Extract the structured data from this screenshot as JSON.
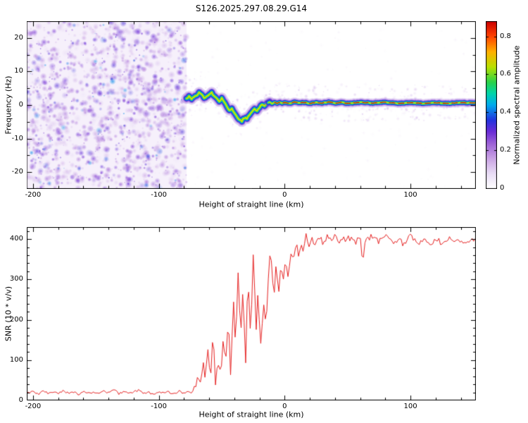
{
  "page": {
    "title": "S126.2025.297.08.29.G14"
  },
  "chart_data": [
    {
      "type": "heatmap",
      "title": "S126.2025.297.08.29.G14",
      "xlabel": "Height of straight line (km)",
      "ylabel": "Frequency (Hz)",
      "xlim": [
        -205,
        152
      ],
      "ylim": [
        -25,
        25
      ],
      "xticks": [
        -200,
        -100,
        0,
        100
      ],
      "yticks": [
        -20,
        -10,
        0,
        10,
        20
      ],
      "x_minor_step": 20,
      "y_minor_step": 5,
      "colorbar": {
        "label": "Normalized spectral amplitude",
        "ticks": [
          "0",
          "0.2",
          "0.4",
          "0.6",
          "0.8"
        ],
        "tick_values": [
          0,
          0.2,
          0.4,
          0.6,
          0.8
        ],
        "vmax": 0.88
      },
      "colormap_stops": [
        [
          0.0,
          "#ffffff"
        ],
        [
          0.08,
          "#e8dcf5"
        ],
        [
          0.16,
          "#c9a2e4"
        ],
        [
          0.24,
          "#9a5fd6"
        ],
        [
          0.3,
          "#6a2bd6"
        ],
        [
          0.36,
          "#2433dd"
        ],
        [
          0.44,
          "#00aaee"
        ],
        [
          0.5,
          "#00d4aa"
        ],
        [
          0.56,
          "#2ad24a"
        ],
        [
          0.64,
          "#b8e000"
        ],
        [
          0.72,
          "#ffb000"
        ],
        [
          0.8,
          "#ff4400"
        ],
        [
          0.88,
          "#cc0000"
        ],
        [
          1.0,
          "#990000"
        ]
      ],
      "noise_region": {
        "x_range": [
          -205,
          -78
        ],
        "y_range": [
          -25,
          25
        ],
        "density": 1600,
        "amplitude_range": [
          0.05,
          0.32
        ]
      },
      "signal_trace": [
        [
          -78,
          2.0
        ],
        [
          -76,
          2.6
        ],
        [
          -74,
          1.9
        ],
        [
          -72,
          2.2
        ],
        [
          -70,
          3.0
        ],
        [
          -68,
          3.6
        ],
        [
          -66,
          3.2
        ],
        [
          -64,
          2.1
        ],
        [
          -62,
          2.8
        ],
        [
          -60,
          3.2
        ],
        [
          -58,
          3.6
        ],
        [
          -56,
          2.8
        ],
        [
          -54,
          2.2
        ],
        [
          -52,
          1.2
        ],
        [
          -50,
          2.0
        ],
        [
          -48,
          0.9
        ],
        [
          -46,
          -0.3
        ],
        [
          -44,
          -1.6
        ],
        [
          -42,
          -1.1
        ],
        [
          -40,
          -2.4
        ],
        [
          -38,
          -3.4
        ],
        [
          -36,
          -4.3
        ],
        [
          -34,
          -4.7
        ],
        [
          -32,
          -3.8
        ],
        [
          -30,
          -4.1
        ],
        [
          -28,
          -2.9
        ],
        [
          -26,
          -1.9
        ],
        [
          -24,
          -1.3
        ],
        [
          -22,
          -1.7
        ],
        [
          -20,
          -0.7
        ],
        [
          -18,
          0.2
        ],
        [
          -16,
          -0.2
        ],
        [
          -14,
          0.5
        ],
        [
          -12,
          0.9
        ],
        [
          -10,
          0.4
        ],
        [
          -8,
          0.8
        ],
        [
          -6,
          0.5
        ],
        [
          -4,
          0.9
        ],
        [
          -2,
          0.6
        ],
        [
          0,
          0.8
        ],
        [
          4,
          0.5
        ],
        [
          8,
          0.9
        ],
        [
          12,
          0.6
        ],
        [
          16,
          0.8
        ],
        [
          20,
          0.5
        ],
        [
          25,
          0.8
        ],
        [
          30,
          0.6
        ],
        [
          35,
          0.9
        ],
        [
          40,
          0.6
        ],
        [
          45,
          0.8
        ],
        [
          50,
          0.5
        ],
        [
          60,
          0.8
        ],
        [
          70,
          0.6
        ],
        [
          80,
          0.8
        ],
        [
          90,
          0.5
        ],
        [
          100,
          0.7
        ],
        [
          110,
          0.5
        ],
        [
          120,
          0.7
        ],
        [
          130,
          0.5
        ],
        [
          140,
          0.7
        ],
        [
          151,
          0.6
        ]
      ],
      "trace_band_halfwidth_hz": 2
    },
    {
      "type": "line",
      "xlabel": "Height of straight line (km)",
      "ylabel": "SNR (10 * v/v)",
      "xlim": [
        -205,
        152
      ],
      "ylim": [
        0,
        430
      ],
      "xticks": [
        -200,
        -100,
        0,
        100
      ],
      "yticks": [
        0,
        100,
        200,
        300,
        400
      ],
      "x_minor_step": 20,
      "y_minor_step": 20,
      "color": "#e62020",
      "points": [
        [
          -205,
          18
        ],
        [
          -200,
          22
        ],
        [
          -196,
          15
        ],
        [
          -192,
          24
        ],
        [
          -188,
          17
        ],
        [
          -184,
          21
        ],
        [
          -180,
          16
        ],
        [
          -176,
          25
        ],
        [
          -172,
          18
        ],
        [
          -168,
          22
        ],
        [
          -164,
          15
        ],
        [
          -160,
          23
        ],
        [
          -156,
          17
        ],
        [
          -152,
          21
        ],
        [
          -148,
          16
        ],
        [
          -144,
          24
        ],
        [
          -140,
          18
        ],
        [
          -136,
          27
        ],
        [
          -132,
          17
        ],
        [
          -128,
          22
        ],
        [
          -124,
          16
        ],
        [
          -120,
          21
        ],
        [
          -116,
          25
        ],
        [
          -112,
          17
        ],
        [
          -108,
          20
        ],
        [
          -104,
          15
        ],
        [
          -100,
          22
        ],
        [
          -96,
          18
        ],
        [
          -92,
          21
        ],
        [
          -88,
          16
        ],
        [
          -84,
          23
        ],
        [
          -80,
          19
        ],
        [
          -77,
          26
        ],
        [
          -74,
          21
        ],
        [
          -71,
          35
        ],
        [
          -69,
          55
        ],
        [
          -67,
          38
        ],
        [
          -65,
          90
        ],
        [
          -63,
          48
        ],
        [
          -61,
          115
        ],
        [
          -59,
          60
        ],
        [
          -57,
          145
        ],
        [
          -55,
          55
        ],
        [
          -53,
          105
        ],
        [
          -51,
          48
        ],
        [
          -49,
          150
        ],
        [
          -47,
          75
        ],
        [
          -45,
          190
        ],
        [
          -43,
          85
        ],
        [
          -41,
          250
        ],
        [
          -39,
          110
        ],
        [
          -37,
          300
        ],
        [
          -35,
          140
        ],
        [
          -33,
          270
        ],
        [
          -31,
          95
        ],
        [
          -29,
          320
        ],
        [
          -27,
          150
        ],
        [
          -25,
          360
        ],
        [
          -23,
          180
        ],
        [
          -21,
          280
        ],
        [
          -19,
          130
        ],
        [
          -17,
          240
        ],
        [
          -15,
          185
        ],
        [
          -13,
          310
        ],
        [
          -11,
          380
        ],
        [
          -9,
          250
        ],
        [
          -7,
          330
        ],
        [
          -5,
          270
        ],
        [
          -3,
          350
        ],
        [
          -1,
          300
        ],
        [
          1,
          340
        ],
        [
          3,
          310
        ],
        [
          5,
          370
        ],
        [
          7,
          335
        ],
        [
          9,
          390
        ],
        [
          11,
          355
        ],
        [
          13,
          400
        ],
        [
          15,
          370
        ],
        [
          17,
          410
        ],
        [
          19,
          380
        ],
        [
          22,
          400
        ],
        [
          25,
          385
        ],
        [
          28,
          405
        ],
        [
          31,
          390
        ],
        [
          34,
          410
        ],
        [
          37,
          395
        ],
        [
          40,
          405
        ],
        [
          45,
          390
        ],
        [
          50,
          408
        ],
        [
          55,
          392
        ],
        [
          60,
          400
        ],
        [
          62,
          348
        ],
        [
          64,
          398
        ],
        [
          70,
          405
        ],
        [
          75,
          395
        ],
        [
          80,
          410
        ],
        [
          85,
          390
        ],
        [
          90,
          402
        ],
        [
          95,
          388
        ],
        [
          100,
          405
        ],
        [
          105,
          392
        ],
        [
          110,
          398
        ],
        [
          115,
          385
        ],
        [
          120,
          400
        ],
        [
          125,
          390
        ],
        [
          130,
          405
        ],
        [
          135,
          392
        ],
        [
          140,
          398
        ],
        [
          145,
          388
        ],
        [
          150,
          395
        ]
      ],
      "jitter_envelope": [
        [
          -205,
          5
        ],
        [
          -82,
          5
        ],
        [
          -72,
          10
        ],
        [
          -62,
          30
        ],
        [
          -45,
          45
        ],
        [
          -20,
          48
        ],
        [
          -8,
          32
        ],
        [
          5,
          24
        ],
        [
          20,
          16
        ],
        [
          151,
          15
        ]
      ]
    }
  ]
}
